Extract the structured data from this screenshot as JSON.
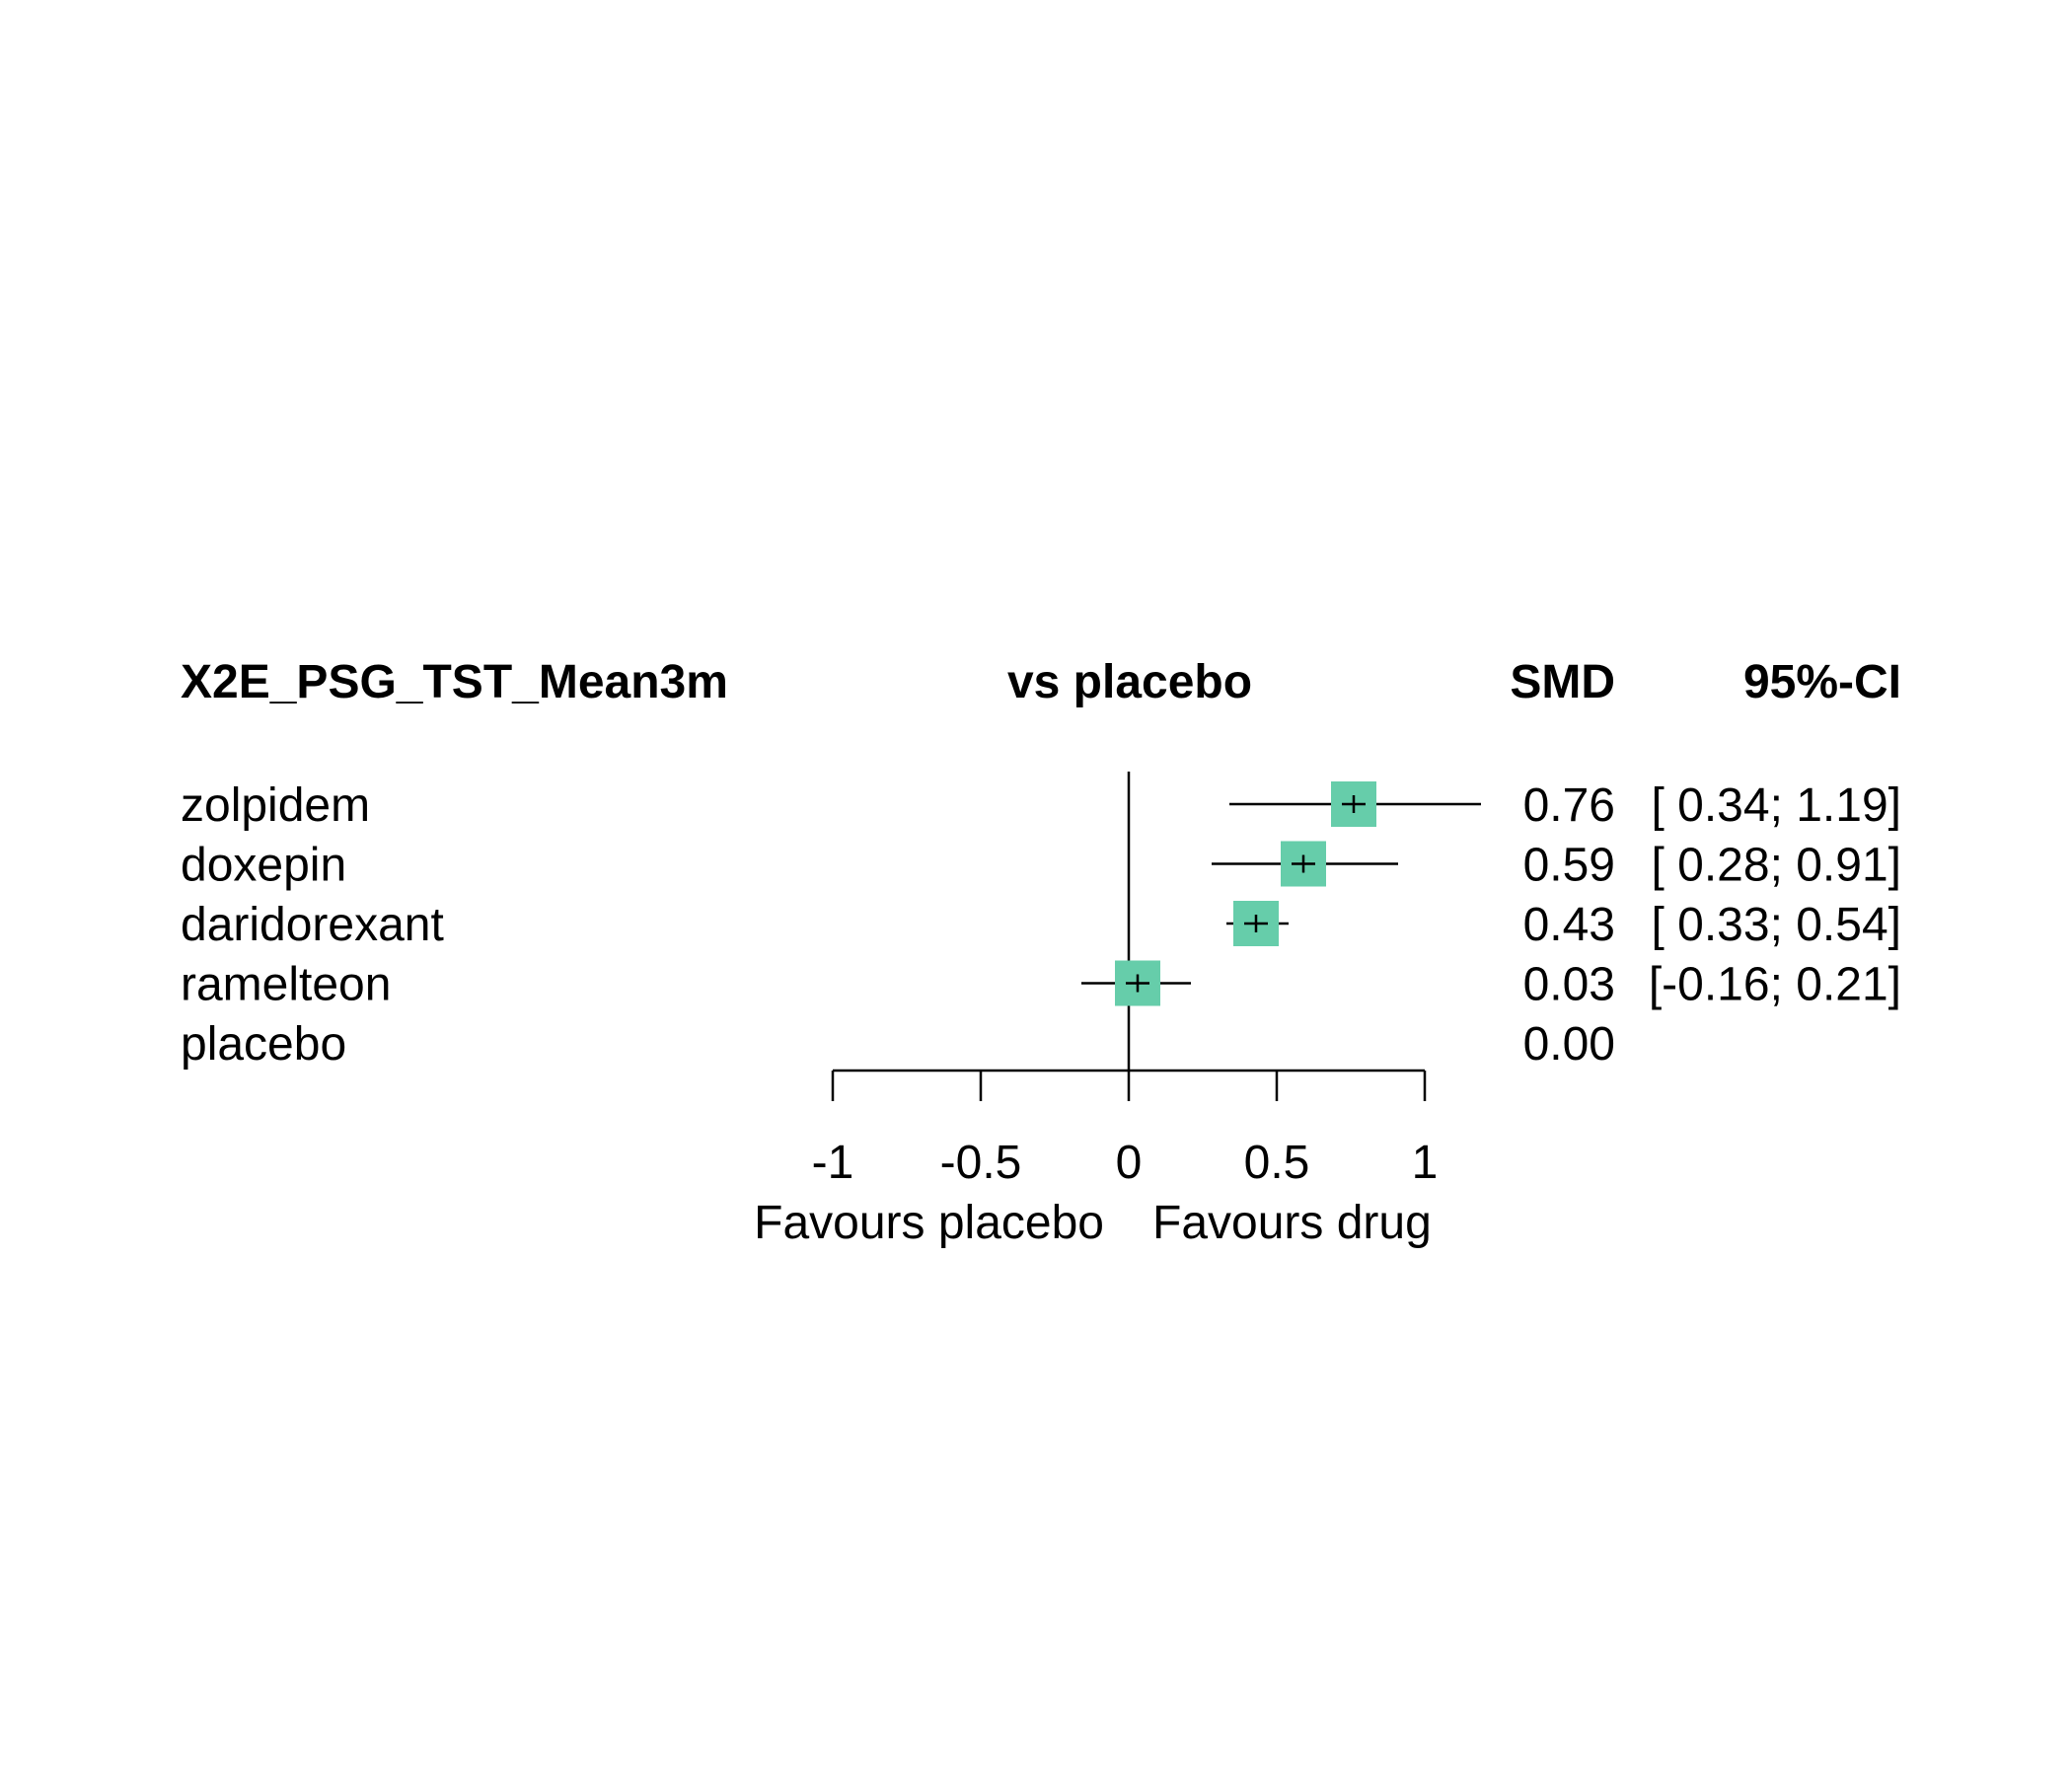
{
  "chart_data": {
    "type": "forest",
    "header": {
      "outcome": "X2E_PSG_TST_Mean3m",
      "comparison": "vs placebo",
      "effect_col": "SMD",
      "ci_col": "95%-CI"
    },
    "rows": [
      {
        "label": "zolpidem",
        "smd": 0.76,
        "lower": 0.34,
        "upper": 1.19,
        "smd_text": "0.76",
        "ci_text": "[ 0.34; 1.19]"
      },
      {
        "label": "doxepin",
        "smd": 0.59,
        "lower": 0.28,
        "upper": 0.91,
        "smd_text": "0.59",
        "ci_text": "[ 0.28; 0.91]"
      },
      {
        "label": "daridorexant",
        "smd": 0.43,
        "lower": 0.33,
        "upper": 0.54,
        "smd_text": "0.43",
        "ci_text": "[ 0.33; 0.54]"
      },
      {
        "label": "ramelteon",
        "smd": 0.03,
        "lower": -0.16,
        "upper": 0.21,
        "smd_text": "0.03",
        "ci_text": "[-0.16; 0.21]"
      },
      {
        "label": "placebo",
        "smd": 0.0,
        "lower": null,
        "upper": null,
        "smd_text": "0.00",
        "ci_text": ""
      }
    ],
    "x_axis": {
      "ticks": [
        -1,
        -0.5,
        0,
        0.5,
        1
      ],
      "tick_labels": [
        "-1",
        "-0.5",
        "0",
        "0.5",
        "1"
      ],
      "range": [
        -1,
        1
      ],
      "reference_line": 0,
      "label_left": "Favours placebo",
      "label_right": "Favours drug"
    },
    "marker_color": "#66CDAA",
    "line_color": "#000000"
  }
}
